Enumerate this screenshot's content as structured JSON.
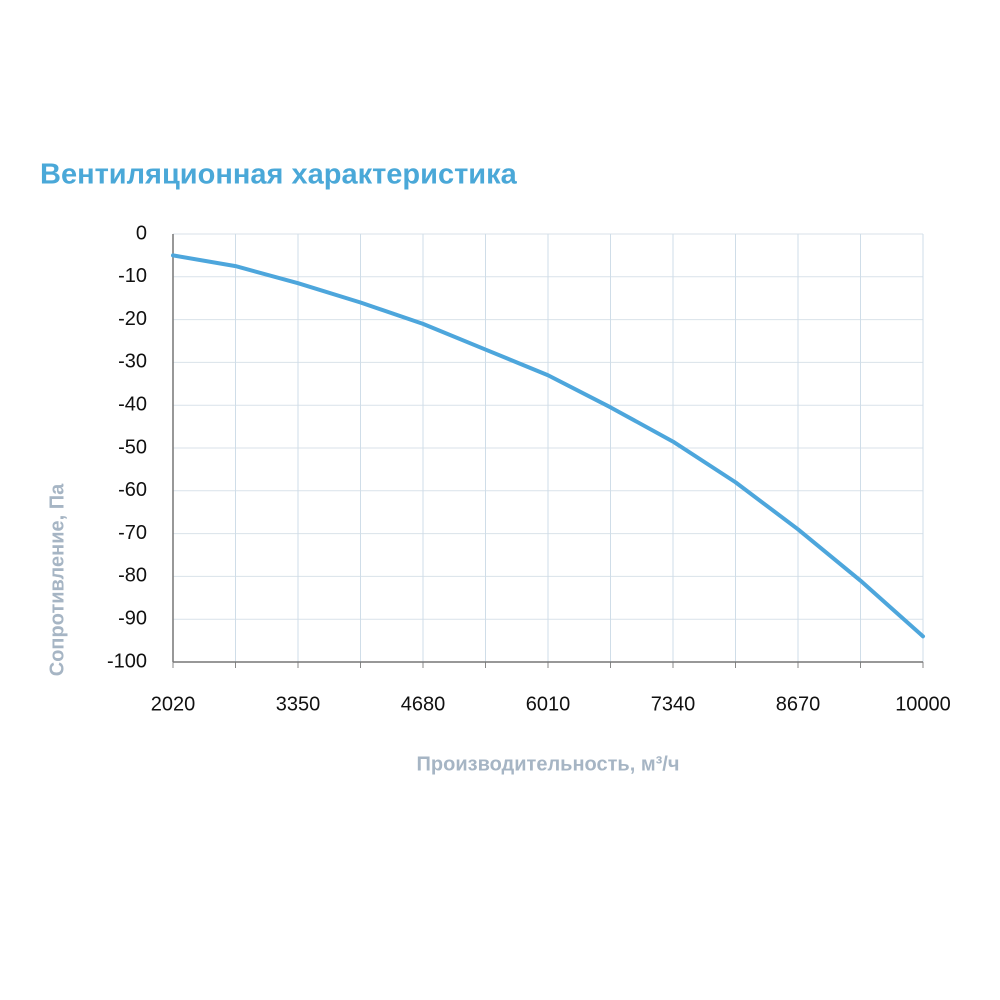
{
  "chart_data": {
    "type": "line",
    "title": "Вентиляционная характеристика",
    "x_label": "Производительность, м³/ч",
    "y_label": "Сопротивление, Па",
    "x": [
      2020,
      2685,
      3350,
      4015,
      4680,
      5345,
      6010,
      6675,
      7340,
      8005,
      8670,
      9335,
      10000
    ],
    "series": [
      {
        "name": "Сопротивление",
        "color": "#4da6dc",
        "values": [
          -5,
          -7.5,
          -11.5,
          -16,
          -21,
          -27,
          -33,
          -40.5,
          -48.5,
          -58,
          -69,
          -81,
          -94
        ]
      }
    ],
    "xlim": [
      2020,
      10000
    ],
    "xticks": [
      2020,
      3350,
      4680,
      6010,
      7340,
      8670,
      10000
    ],
    "ylim": [
      -100,
      0
    ],
    "yticks": [
      0,
      -10,
      -20,
      -30,
      -40,
      -50,
      -60,
      -70,
      -80,
      -90,
      -100
    ],
    "grid": true
  }
}
